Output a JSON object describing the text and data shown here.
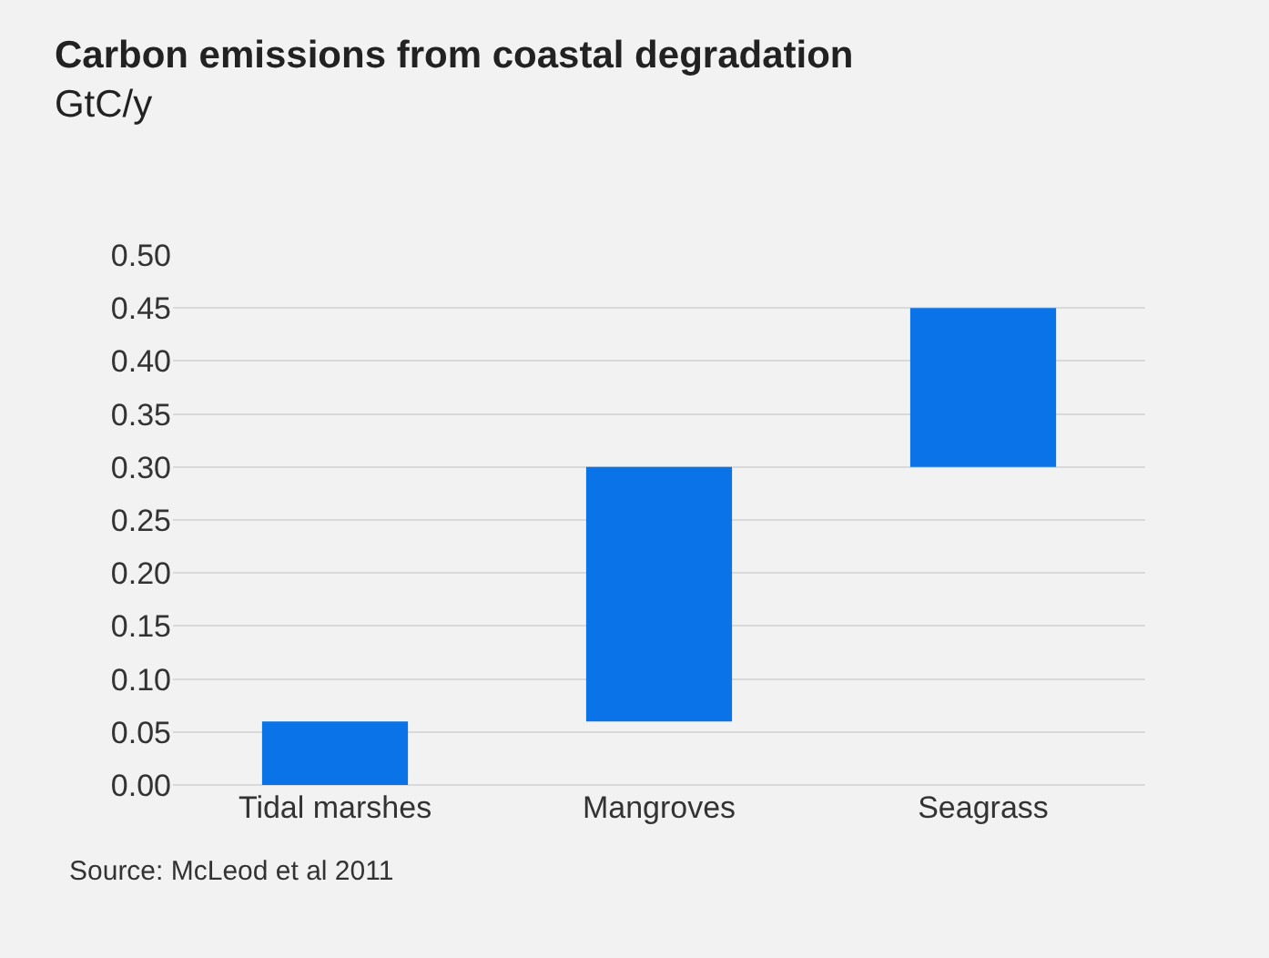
{
  "chart_data": {
    "type": "bar",
    "title": "Carbon emissions from coastal degradation",
    "subtitle": "GtC/y",
    "categories": [
      "Tidal marshes",
      "Mangroves",
      "Seagrass"
    ],
    "values": [
      0.06,
      0.24,
      0.15
    ],
    "base": [
      0,
      0.06,
      0.3
    ],
    "color": "#0a73e8",
    "ylim": [
      0,
      0.5
    ],
    "yticks": [
      {
        "value": 0,
        "label": "0.00"
      },
      {
        "value": 0.05,
        "label": "0.05"
      },
      {
        "value": 0.1,
        "label": "0.10"
      },
      {
        "value": 0.15,
        "label": "0.15"
      },
      {
        "value": 0.2,
        "label": "0.20"
      },
      {
        "value": 0.25,
        "label": "0.25"
      },
      {
        "value": 0.3,
        "label": "0.30"
      },
      {
        "value": 0.35,
        "label": "0.35"
      },
      {
        "value": 0.4,
        "label": "0.40"
      },
      {
        "value": 0.45,
        "label": "0.45"
      },
      {
        "value": 0.5,
        "label": "0.50"
      }
    ],
    "grid": "y",
    "annotations": [
      "Source: McLeod et al 2011"
    ]
  }
}
